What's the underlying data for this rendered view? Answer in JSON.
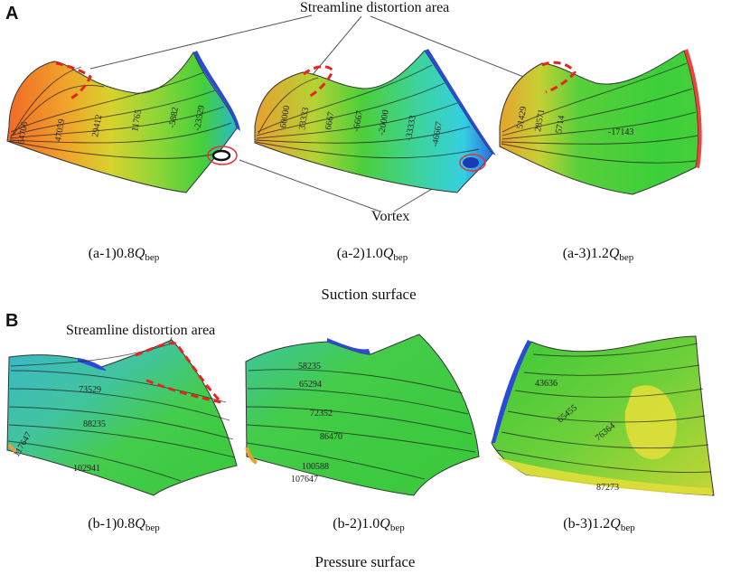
{
  "panels": {
    "a": {
      "letter": "A",
      "annotation_top": "Streamline distortion area",
      "annotation_vortex": "Vortex",
      "surface_title": "Suction surface",
      "subfigures": [
        {
          "id": "a-1",
          "prefix": "(a-1)0.8",
          "var": "Q",
          "sub": "bep",
          "contours": [
            "64706",
            "47059",
            "29412",
            "11765",
            "-5882",
            "-23529"
          ]
        },
        {
          "id": "a-2",
          "prefix": "(a-2)1.0",
          "var": "Q",
          "sub": "bep",
          "contours": [
            "60000",
            "33333",
            "6667",
            "-6667",
            "-20000",
            "-33333",
            "-46667"
          ]
        },
        {
          "id": "a-3",
          "prefix": "(a-3)1.2",
          "var": "Q",
          "sub": "bep",
          "contours": [
            "51429",
            "28571",
            "5714",
            "-17143"
          ]
        }
      ]
    },
    "b": {
      "letter": "B",
      "annotation_top": "Streamline distortion area",
      "surface_title": "Pressure surface",
      "subfigures": [
        {
          "id": "b-1",
          "prefix": "(b-1)0.8",
          "var": "Q",
          "sub": "bep",
          "contours": [
            "73529",
            "88235",
            "102941",
            "117647"
          ]
        },
        {
          "id": "b-2",
          "prefix": "(b-2)1.0",
          "var": "Q",
          "sub": "bep",
          "contours": [
            "58235",
            "65294",
            "72352",
            "86470",
            "100588",
            "107647"
          ]
        },
        {
          "id": "b-3",
          "prefix": "(b-3)1.2",
          "var": "Q",
          "sub": "bep",
          "contours": [
            "43636",
            "65455",
            "76364",
            "87273"
          ]
        }
      ]
    }
  },
  "colors": {
    "green": "#33cc33",
    "yellow": "#e6e633",
    "orange": "#f08a2a",
    "cyan": "#39d6e0",
    "blue": "#2a4bd6",
    "red_dash": "#e8241e",
    "vortex_circle": "#e0303a"
  }
}
